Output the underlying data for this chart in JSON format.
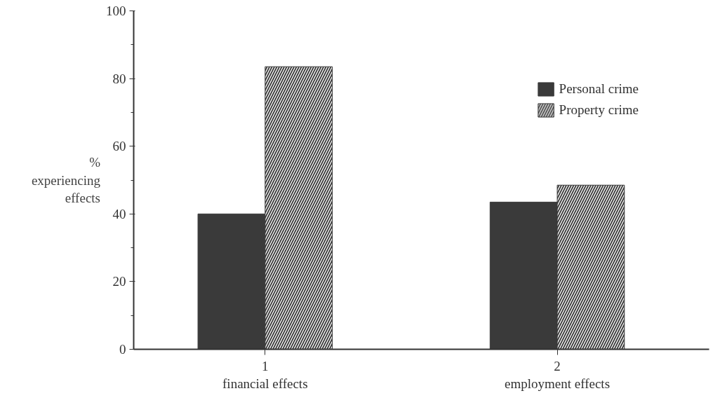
{
  "chart_data": {
    "type": "bar",
    "categories": [
      "1\nfinancial effects",
      "2\nemployment effects"
    ],
    "ylabel": "%\nexperiencing\neffects",
    "series": [
      {
        "name": "Personal crime",
        "color": "#3a3a3a",
        "values": [
          40,
          43.5
        ]
      },
      {
        "name": "Property crime",
        "color": "#3a3a3a",
        "values": [
          83.5,
          48.5
        ]
      }
    ],
    "ylim": [
      0,
      100
    ],
    "yticks": [
      0,
      20,
      40,
      60,
      80,
      100
    ],
    "grid": false,
    "legend": "top right"
  }
}
